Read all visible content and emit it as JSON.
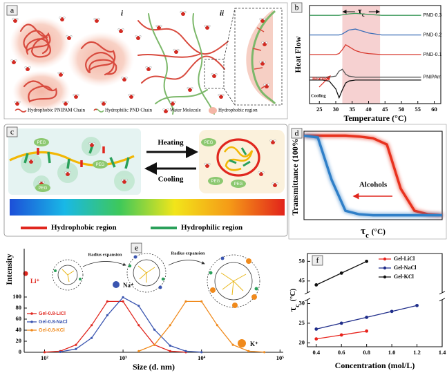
{
  "panels": {
    "a": {
      "label": "a",
      "sub_i": "i",
      "sub_ii": "ii",
      "legend": [
        "Hydrophobic PNIPAM Chain",
        "Hydrophilic PND Chain",
        "Water Molecule",
        "Hydrophobic region"
      ]
    },
    "c": {
      "label": "c",
      "heating": "Heating",
      "cooling": "Cooling",
      "peg": [
        "PEG",
        "PEG",
        "PEG",
        "PEG",
        "PEG",
        "PEG"
      ],
      "legend": [
        "Hydrophobic region",
        "Hydrophilic region"
      ]
    }
  },
  "chart_data": [
    {
      "type": "line",
      "panel_label": "b",
      "xlabel": "Temperature (°C)",
      "ylabel": "Heat Flow",
      "x": [
        22,
        26,
        28,
        30,
        31,
        32,
        33,
        34,
        36,
        38,
        40,
        44,
        48,
        52,
        56
      ],
      "series": [
        {
          "name": "PND-0.3",
          "color": "#3f9b5c",
          "values": [
            9,
            9,
            9,
            9,
            9,
            9.05,
            9.1,
            9.15,
            9.2,
            9.15,
            9.1,
            9,
            9,
            9,
            9
          ]
        },
        {
          "name": "PND-0.2",
          "color": "#3c6fb8",
          "values": [
            7,
            7,
            7,
            7,
            7,
            7.1,
            7.3,
            7.5,
            7.6,
            7.4,
            7.2,
            7,
            7,
            7,
            7
          ]
        },
        {
          "name": "PND-0.1",
          "color": "#d8372c",
          "values": [
            5,
            5,
            5,
            5,
            5.1,
            5.5,
            6,
            5.8,
            5.4,
            5.2,
            5.1,
            5,
            5,
            5,
            5
          ]
        },
        {
          "name": "PNIPAm",
          "color": "#555555",
          "values": [
            2.7,
            2.7,
            2.7,
            2.8,
            3.3,
            3.5,
            3,
            2.8,
            2.7,
            2.7,
            2.7,
            2.7,
            2.7,
            2.7,
            2.7
          ]
        },
        {
          "color": "#111111",
          "values": [
            2.4,
            2.4,
            2.3,
            1.5,
            0.6,
            1.4,
            2.1,
            2.3,
            2.4,
            2.4,
            2.4,
            2.4,
            2.4,
            2.4,
            2.4
          ]
        }
      ],
      "xlim": [
        22,
        62
      ],
      "xticks": [
        25,
        30,
        35,
        40,
        45,
        50,
        55,
        60
      ],
      "ylim": [
        0,
        10
      ],
      "frame": true,
      "legend": "line-end",
      "shaded_region": {
        "range": [
          32,
          43.5
        ],
        "color": "#f4c6c6",
        "symbol": "τ",
        "sub": "c"
      },
      "annotations": [
        "Heating",
        "Cooling"
      ]
    },
    {
      "type": "line",
      "panel_label": "d",
      "ylabel": "Transmittance (100%)",
      "xlabel": {
        "symbol": "τ",
        "sub": "c",
        "unit": "(°C)"
      },
      "x": [
        0,
        1,
        2,
        3,
        4,
        5,
        6,
        7,
        8,
        9,
        10
      ],
      "series": [
        {
          "color": "#e8321e",
          "values": [
            95,
            95,
            95,
            95,
            94,
            92,
            85,
            35,
            10,
            6,
            5
          ]
        },
        {
          "color": "#2f7fc8",
          "values": [
            95,
            93,
            45,
            10,
            6,
            5,
            5,
            5,
            5,
            5,
            5
          ]
        }
      ],
      "xlim": [
        0,
        10
      ],
      "ylim": [
        0,
        100
      ],
      "frame": true,
      "annotations": [
        "Alcohols"
      ]
    },
    {
      "type": "line",
      "panel_label": "e",
      "ylabel": "Intensity",
      "xlabel": "Size (d. nm)",
      "log_x": true,
      "x": [
        100,
        158.5,
        251.2,
        398.1,
        631,
        1000,
        1585,
        2512,
        3981,
        6310,
        10000,
        15849,
        25119,
        39811,
        63096
      ],
      "series": [
        {
          "name": "Gel-0.8-LiCl",
          "color": "#e0261e",
          "values": [
            0.2,
            2,
            13.5,
            49,
            92,
            92,
            49,
            13.5,
            2,
            0.2,
            null,
            null,
            null,
            null,
            null
          ]
        },
        {
          "name": "Gel-0.8-NaCl",
          "color": "#3a55b0",
          "values": [
            null,
            0.8,
            6,
            26,
            67,
            99.5,
            84,
            41,
            12,
            2,
            0.2,
            null,
            null,
            null,
            null
          ]
        },
        {
          "name": "Gel-0.8-KCl",
          "color": "#f08a1c",
          "values": [
            null,
            null,
            null,
            null,
            null,
            null,
            2,
            13.5,
            49,
            92,
            92,
            49,
            13.5,
            2,
            0.2
          ]
        }
      ],
      "xlim": [
        55,
        110000
      ],
      "xticks": [
        {
          "value": 100,
          "label": "10²"
        },
        {
          "value": 1000,
          "label": "10³"
        },
        {
          "value": 10000,
          "label": "10⁴"
        },
        {
          "value": 100000,
          "label": "10⁵"
        }
      ],
      "ylim": [
        0,
        187.5
      ],
      "yticks": [
        0,
        20,
        40,
        60,
        80,
        100
      ],
      "frame": false,
      "legend": "left",
      "markers": true,
      "annotations": [
        "Radius expansion",
        "Radius expansion"
      ],
      "ions": [
        "Li⁺",
        "Na⁺",
        "K⁺"
      ]
    },
    {
      "type": "line",
      "panel_label": "f",
      "xlabel": "Concentration (mol/L)",
      "ylabel": {
        "symbol": "τ",
        "sub": "c",
        "unit": "(°C)"
      },
      "x": [
        0.4,
        0.6,
        0.8,
        1.0,
        1.2
      ],
      "series": [
        {
          "name": "Gel-LiCl",
          "color": "#e8231c",
          "values": [
            21,
            22,
            23,
            null,
            null
          ]
        },
        {
          "name": "Gel-NaCl",
          "color": "#1f2d8a",
          "values": [
            23.5,
            25,
            26.5,
            28,
            29.5
          ]
        },
        {
          "name": "Gel-KCl",
          "color": "#111111",
          "values": [
            44,
            47,
            50,
            null,
            null
          ]
        }
      ],
      "xlim": [
        0.33,
        1.4
      ],
      "xticks": [
        0.4,
        0.6,
        0.8,
        {
          "value": 1,
          "label": "1.0"
        },
        1.2,
        1.4
      ],
      "ylim": [
        19,
        52
      ],
      "axis_break": [
        31,
        42
      ],
      "yticks": [
        20,
        25,
        30,
        45,
        50
      ],
      "frame": true,
      "legend": "upper right",
      "markers": true
    }
  ]
}
